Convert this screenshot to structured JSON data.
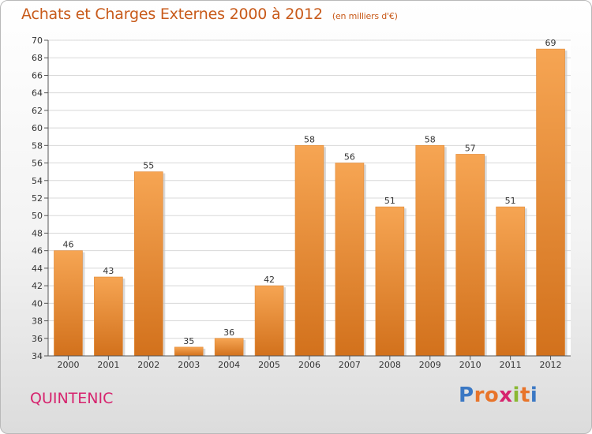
{
  "header": {
    "title": "Achats et Charges Externes 2000 à 2012",
    "subtitle": "(en milliers d'€)"
  },
  "footer": {
    "place": "QUINTENIC",
    "logo_letters": [
      "P",
      "r",
      "o",
      "x",
      "i",
      "t",
      "i"
    ],
    "logo_colors": [
      "#3b78c4",
      "#e8742a",
      "#e8742a",
      "#d6246e",
      "#8ab833",
      "#e8742a",
      "#3b78c4"
    ]
  },
  "colors": {
    "bar_top": "#f6a553",
    "bar_bottom": "#d2711c",
    "grid": "#d8d8d8",
    "axis": "#555555"
  },
  "chart_data": {
    "type": "bar",
    "title": "Achats et Charges Externes 2000 à 2012",
    "subtitle": "(en milliers d'€)",
    "categories": [
      "2000",
      "2001",
      "2002",
      "2003",
      "2004",
      "2005",
      "2006",
      "2007",
      "2008",
      "2009",
      "2010",
      "2011",
      "2012"
    ],
    "values": [
      46,
      43,
      55,
      35,
      36,
      42,
      58,
      56,
      51,
      58,
      57,
      51,
      69
    ],
    "ylim": [
      34,
      70
    ],
    "yticks": [
      34,
      36,
      38,
      40,
      42,
      44,
      46,
      48,
      50,
      52,
      54,
      56,
      58,
      60,
      62,
      64,
      66,
      68,
      70
    ],
    "grid": true,
    "data_labels": true
  }
}
